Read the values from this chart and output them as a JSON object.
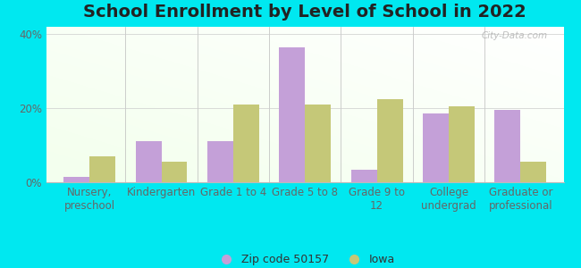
{
  "title": "School Enrollment by Level of School in 2022",
  "categories": [
    "Nursery,\npreschool",
    "Kindergarten",
    "Grade 1 to 4",
    "Grade 5 to 8",
    "Grade 9 to\n12",
    "College\nundergrad",
    "Graduate or\nprofessional"
  ],
  "zip_values": [
    1.5,
    11.0,
    11.0,
    36.5,
    3.5,
    18.5,
    19.5
  ],
  "iowa_values": [
    7.0,
    5.5,
    21.0,
    21.0,
    22.5,
    20.5,
    5.5
  ],
  "zip_color": "#c4a0d8",
  "iowa_color": "#c5c878",
  "background_outer": "#00e8f0",
  "background_plot_topleft": "#d8eed4",
  "background_plot_topright": "#f0f8f0",
  "background_plot_bottomright": "#f5faee",
  "ylim": [
    0,
    42
  ],
  "yticks": [
    0,
    20,
    40
  ],
  "ytick_labels": [
    "0%",
    "20%",
    "40%"
  ],
  "legend_labels": [
    "Zip code 50157",
    "Iowa"
  ],
  "title_fontsize": 14,
  "tick_fontsize": 8.5,
  "bar_width": 0.36,
  "watermark": "City-Data.com"
}
